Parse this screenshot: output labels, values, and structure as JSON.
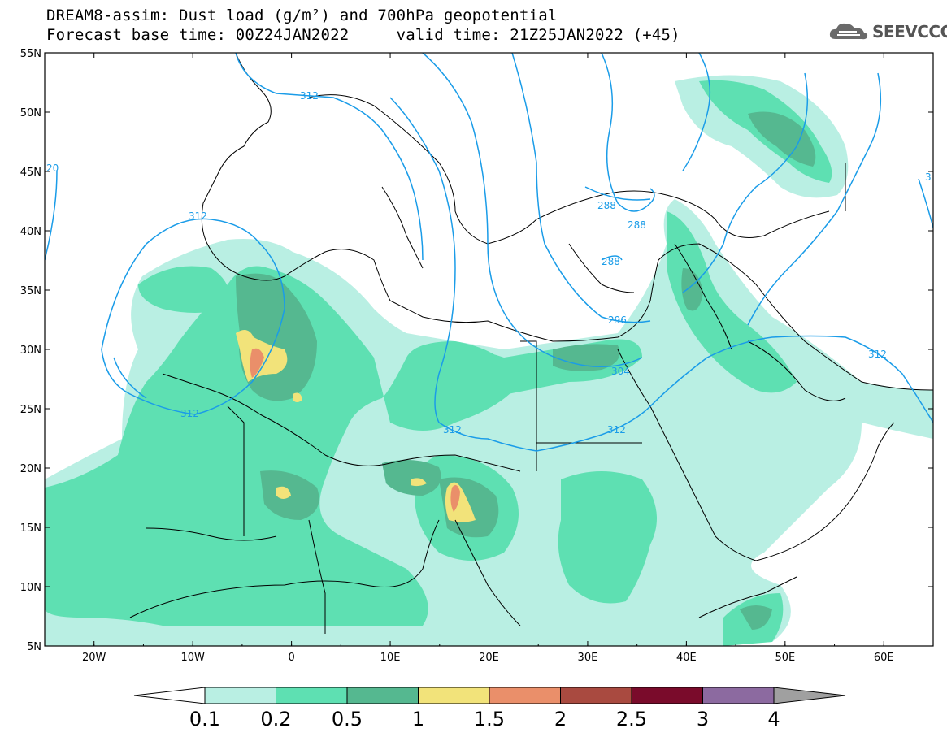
{
  "header": {
    "title_line1": "DREAM8-assim: Dust load (g/m²) and 700hPa geopotential",
    "title_line2": "Forecast base time: 00Z24JAN2022     valid time: 21Z25JAN2022 (+45)",
    "logo_text": "SEEVCCC"
  },
  "map": {
    "lon_range": [
      -25,
      65
    ],
    "lat_range": [
      5,
      55
    ],
    "x_ticks": [
      "20W",
      "10W",
      "0",
      "10E",
      "20E",
      "30E",
      "40E",
      "50E",
      "60E"
    ],
    "y_ticks": [
      "55N",
      "50N",
      "45N",
      "40N",
      "35N",
      "30N",
      "25N",
      "20N",
      "15N",
      "10N",
      "5N"
    ],
    "contour_labels": [
      "312",
      "20",
      "312",
      "312",
      "288",
      "288",
      "288",
      "296",
      "304",
      "312",
      "312",
      "312",
      "3"
    ]
  },
  "colorbar": {
    "levels": [
      "0.1",
      "0.2",
      "0.5",
      "1",
      "1.5",
      "2",
      "2.5",
      "3",
      "4"
    ],
    "colors": [
      "#b9efe3",
      "#5ee0b2",
      "#55b890",
      "#f2e37a",
      "#ea8f6a",
      "#a94a40",
      "#7a0b2b",
      "#8c6aa0",
      "#a0a0a0"
    ]
  },
  "colors": {
    "contour": "#1a9ce8",
    "coastline": "#000000"
  }
}
